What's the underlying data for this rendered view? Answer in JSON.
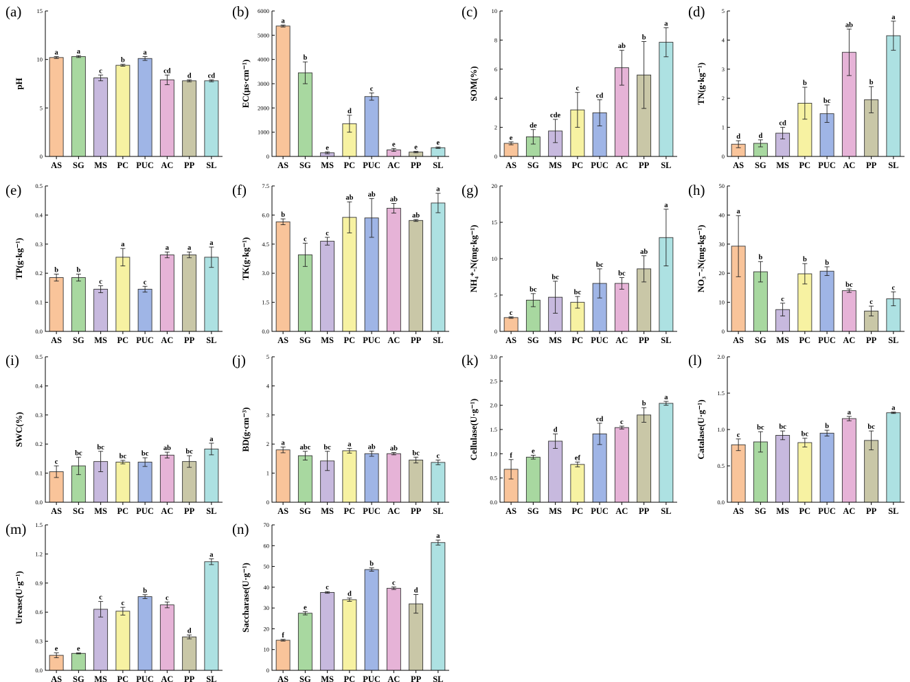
{
  "categories": [
    "AS",
    "SG",
    "MS",
    "PC",
    "PUC",
    "AC",
    "PP",
    "SL"
  ],
  "colors": [
    "#f9c49a",
    "#a8d8a0",
    "#c7b9de",
    "#f7f2a2",
    "#9fb5e6",
    "#e6b3d7",
    "#c9c7a7",
    "#ade1e2"
  ],
  "chart_data": [
    {
      "type": "bar",
      "panel": "(a)",
      "ylabel": "pH",
      "ylim": [
        0,
        15
      ],
      "yticks": [
        "0",
        "5",
        "10",
        "15"
      ],
      "yvals": [
        0,
        5,
        10,
        15
      ],
      "values": [
        10.2,
        10.3,
        8.1,
        9.4,
        10.1,
        7.9,
        7.8,
        7.8
      ],
      "errors": [
        0.1,
        0.1,
        0.3,
        0.1,
        0.2,
        0.5,
        0.1,
        0.1
      ],
      "letters": [
        "a",
        "a",
        "c",
        "b",
        "a",
        "cd",
        "d",
        "cd"
      ]
    },
    {
      "type": "bar",
      "panel": "(b)",
      "ylabel": "EC(μs·cm⁻¹)",
      "ylim": [
        0,
        6000
      ],
      "yticks": [
        "0",
        "1000",
        "2000",
        "3000",
        "4000",
        "5000",
        "6000"
      ],
      "yvals": [
        0,
        1000,
        2000,
        3000,
        4000,
        5000,
        6000
      ],
      "values": [
        5380,
        3450,
        150,
        1350,
        2470,
        270,
        180,
        360
      ],
      "errors": [
        40,
        450,
        40,
        350,
        150,
        60,
        30,
        30
      ],
      "letters": [
        "a",
        "b",
        "e",
        "d",
        "c",
        "e",
        "e",
        "e"
      ]
    },
    {
      "type": "bar",
      "panel": "(c)",
      "ylabel": "SOM(%)",
      "ylim": [
        0,
        10
      ],
      "yticks": [
        "0",
        "2",
        "4",
        "6",
        "8",
        "10"
      ],
      "yvals": [
        0,
        2,
        4,
        6,
        8,
        10
      ],
      "values": [
        0.9,
        1.35,
        1.75,
        3.2,
        3.0,
        6.1,
        5.6,
        7.85
      ],
      "errors": [
        0.1,
        0.5,
        0.8,
        1.2,
        0.9,
        1.2,
        2.3,
        1.0
      ],
      "letters": [
        "e",
        "de",
        "cde",
        "c",
        "cd",
        "ab",
        "b",
        "a"
      ]
    },
    {
      "type": "bar",
      "panel": "(d)",
      "ylabel": "TN(g·kg⁻¹)",
      "ylim": [
        0,
        5
      ],
      "yticks": [
        "0",
        "1",
        "2",
        "3",
        "4",
        "5"
      ],
      "yvals": [
        0,
        1,
        2,
        3,
        4,
        5
      ],
      "values": [
        0.42,
        0.45,
        0.8,
        1.83,
        1.47,
        3.58,
        1.95,
        4.15
      ],
      "errors": [
        0.12,
        0.12,
        0.2,
        0.55,
        0.3,
        0.8,
        0.45,
        0.5
      ],
      "letters": [
        "d",
        "d",
        "cd",
        "b",
        "bc",
        "ab",
        "b",
        "a"
      ]
    },
    {
      "type": "bar",
      "panel": "(e)",
      "ylabel": "TP(g·kg⁻¹)",
      "ylim": [
        0,
        0.5
      ],
      "yticks": [
        "0.0",
        "0.1",
        "0.2",
        "0.3",
        "0.4",
        "0.5"
      ],
      "yvals": [
        0,
        0.1,
        0.2,
        0.3,
        0.4,
        0.5
      ],
      "values": [
        0.185,
        0.185,
        0.145,
        0.255,
        0.145,
        0.263,
        0.263,
        0.255
      ],
      "errors": [
        0.012,
        0.012,
        0.012,
        0.03,
        0.01,
        0.01,
        0.01,
        0.035
      ],
      "letters": [
        "b",
        "b",
        "c",
        "a",
        "c",
        "a",
        "a",
        "a"
      ]
    },
    {
      "type": "bar",
      "panel": "(f)",
      "ylabel": "TK(g·kg⁻¹)",
      "ylim": [
        0,
        7.5
      ],
      "yticks": [
        "0.0",
        "1.5",
        "3.0",
        "4.5",
        "6.0",
        "7.5"
      ],
      "yvals": [
        0,
        1.5,
        3,
        4.5,
        6,
        7.5
      ],
      "values": [
        5.65,
        3.95,
        4.65,
        5.88,
        5.85,
        6.35,
        5.72,
        6.62
      ],
      "errors": [
        0.15,
        0.6,
        0.2,
        0.8,
        1.0,
        0.25,
        0.05,
        0.5
      ],
      "letters": [
        "b",
        "c",
        "c",
        "ab",
        "ab",
        "ab",
        "ab",
        "a"
      ]
    },
    {
      "type": "bar",
      "panel": "(g)",
      "ylabel": "NH₄⁺-N(mg·kg⁻¹)",
      "ylim": [
        0,
        20
      ],
      "yticks": [
        "0",
        "5",
        "10",
        "15",
        "20"
      ],
      "yvals": [
        0,
        5,
        10,
        15,
        20
      ],
      "values": [
        1.9,
        4.3,
        4.7,
        4.0,
        6.6,
        6.6,
        8.6,
        12.9
      ],
      "errors": [
        0.1,
        0.9,
        2.2,
        0.8,
        2.0,
        0.8,
        1.8,
        3.9
      ],
      "letters": [
        "c",
        "bc",
        "bc",
        "bc",
        "bc",
        "bc",
        "ab",
        "a"
      ]
    },
    {
      "type": "bar",
      "panel": "(h)",
      "ylabel": "NO₃⁻-N(mg·kg⁻¹)",
      "ylim": [
        0,
        50
      ],
      "yticks": [
        "0",
        "10",
        "20",
        "30",
        "40",
        "50"
      ],
      "yvals": [
        0,
        10,
        20,
        30,
        40,
        50
      ],
      "values": [
        29.3,
        20.5,
        7.5,
        19.8,
        20.7,
        14.0,
        7.0,
        11.2
      ],
      "errors": [
        10.5,
        3.5,
        2.2,
        3.5,
        1.5,
        0.6,
        1.7,
        2.4
      ],
      "letters": [
        "a",
        "b",
        "c",
        "b",
        "b",
        "bc",
        "c",
        "c"
      ]
    },
    {
      "type": "bar",
      "panel": "(i)",
      "ylabel": "SWC(%)",
      "ylim": [
        0,
        0.5
      ],
      "yticks": [
        "0.0",
        "0.1",
        "0.2",
        "0.3",
        "0.4",
        "0.5"
      ],
      "yvals": [
        0,
        0.1,
        0.2,
        0.3,
        0.4,
        0.5
      ],
      "values": [
        0.105,
        0.125,
        0.14,
        0.138,
        0.138,
        0.162,
        0.14,
        0.183
      ],
      "errors": [
        0.02,
        0.03,
        0.035,
        0.006,
        0.015,
        0.01,
        0.02,
        0.02
      ],
      "letters": [
        "c",
        "bc",
        "bc",
        "bc",
        "bc",
        "ab",
        "bc",
        "a"
      ]
    },
    {
      "type": "bar",
      "panel": "(j)",
      "ylabel": "BD(g·cm⁻³)",
      "ylim": [
        0,
        5
      ],
      "yticks": [
        "0",
        "1",
        "2",
        "3",
        "4",
        "5"
      ],
      "yvals": [
        0,
        1,
        2,
        3,
        4,
        5
      ],
      "values": [
        1.8,
        1.6,
        1.42,
        1.77,
        1.67,
        1.67,
        1.45,
        1.37
      ],
      "errors": [
        0.1,
        0.15,
        0.33,
        0.08,
        0.09,
        0.04,
        0.1,
        0.08
      ],
      "letters": [
        "a",
        "abc",
        "bc",
        "a",
        "ab",
        "ab",
        "bc",
        "c"
      ]
    },
    {
      "type": "bar",
      "panel": "(k)",
      "ylabel": "Cellulase(U·g⁻¹)",
      "ylim": [
        0,
        3
      ],
      "yticks": [
        "0.0",
        "0.5",
        "1.0",
        "1.5",
        "2.0",
        "2.5",
        "3.0"
      ],
      "yvals": [
        0,
        0.5,
        1,
        1.5,
        2,
        2.5,
        3
      ],
      "values": [
        0.68,
        0.93,
        1.26,
        0.78,
        1.41,
        1.54,
        1.8,
        2.04
      ],
      "errors": [
        0.2,
        0.04,
        0.15,
        0.05,
        0.22,
        0.03,
        0.15,
        0.04
      ],
      "letters": [
        "f",
        "e",
        "d",
        "ef",
        "cd",
        "c",
        "b",
        "a"
      ]
    },
    {
      "type": "bar",
      "panel": "(l)",
      "ylabel": "Catalase(U·g⁻¹)",
      "ylim": [
        0,
        2
      ],
      "yticks": [
        "0.0",
        "0.5",
        "1.0",
        "1.5",
        "2.0"
      ],
      "yvals": [
        0,
        0.5,
        1,
        1.5,
        2
      ],
      "values": [
        0.79,
        0.83,
        0.92,
        0.82,
        0.95,
        1.15,
        0.85,
        1.23
      ],
      "errors": [
        0.08,
        0.14,
        0.06,
        0.06,
        0.04,
        0.03,
        0.13,
        0.01
      ],
      "letters": [
        "c",
        "bc",
        "bc",
        "bc",
        "b",
        "a",
        "bc",
        "a"
      ]
    },
    {
      "type": "bar",
      "panel": "(m)",
      "ylabel": "Urease(U·g⁻¹)",
      "ylim": [
        0,
        1.5
      ],
      "yticks": [
        "0.0",
        "0.3",
        "0.6",
        "0.9",
        "1.2",
        "1.5"
      ],
      "yvals": [
        0,
        0.3,
        0.6,
        0.9,
        1.2,
        1.5
      ],
      "values": [
        0.155,
        0.175,
        0.63,
        0.61,
        0.76,
        0.675,
        0.345,
        1.12
      ],
      "errors": [
        0.025,
        0.005,
        0.08,
        0.04,
        0.02,
        0.03,
        0.02,
        0.03
      ],
      "letters": [
        "e",
        "e",
        "c",
        "c",
        "b",
        "c",
        "d",
        "a"
      ]
    },
    {
      "type": "bar",
      "panel": "(n)",
      "ylabel": "Saccharase(U·g⁻¹)",
      "ylim": [
        0,
        70
      ],
      "yticks": [
        "0",
        "10",
        "20",
        "30",
        "40",
        "50",
        "60",
        "70"
      ],
      "yvals": [
        0,
        10,
        20,
        30,
        40,
        50,
        60,
        70
      ],
      "values": [
        14.5,
        27.5,
        37.5,
        34.0,
        48.5,
        39.5,
        32.0,
        61.5
      ],
      "errors": [
        0.4,
        0.8,
        0.4,
        0.8,
        0.8,
        0.6,
        4.5,
        1.2
      ],
      "letters": [
        "f",
        "e",
        "c",
        "d",
        "b",
        "c",
        "d",
        "a"
      ]
    }
  ]
}
